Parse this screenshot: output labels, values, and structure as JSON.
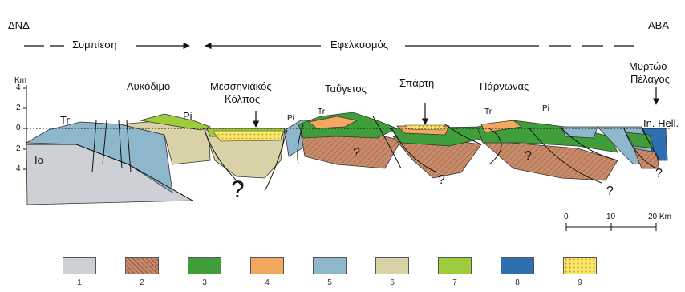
{
  "header": {
    "left": "ΔΝΔ",
    "right": "ΑΒΑ"
  },
  "regimes": {
    "compression": "Συμπίεση",
    "extension": "Εφελκυσμός"
  },
  "places": {
    "lykodimo": "Λυκόδιμο",
    "messiniakos_1": "Μεσσηνιακός",
    "messiniakos_2": "Κόλπος",
    "taygetos": "Ταΰγετος",
    "sparti": "Σπάρτη",
    "parnonas": "Πάρνωνας",
    "myrtoo_1": "Μυρτώο",
    "myrtoo_2": "Πέλαγος"
  },
  "units": {
    "tr1": "Tr",
    "pi1": "Pi",
    "pi2": "Pi",
    "tr2": "Tr",
    "tr3": "Tr",
    "pi3": "Pi",
    "io": "Io",
    "inhell": "In. Hell."
  },
  "question_mark": "?",
  "depth_axis": {
    "unit": "Km",
    "ticks": [
      "4",
      "2",
      "0",
      "2",
      "4"
    ]
  },
  "scale_bar": {
    "ticks": [
      "0",
      "10",
      "20 Km"
    ]
  },
  "legend": [
    {
      "num": "1",
      "color": "#cdd1d6"
    },
    {
      "num": "2",
      "color": "#c98a6a",
      "pattern": "hatch"
    },
    {
      "num": "3",
      "color": "#3f9e3a"
    },
    {
      "num": "4",
      "color": "#f4a75e"
    },
    {
      "num": "5",
      "color": "#8fb7cc"
    },
    {
      "num": "6",
      "color": "#d8d2a6"
    },
    {
      "num": "7",
      "color": "#9fcc3d"
    },
    {
      "num": "8",
      "color": "#2e6fb2"
    },
    {
      "num": "9",
      "color": "#f7e96a",
      "pattern": "dots"
    }
  ]
}
